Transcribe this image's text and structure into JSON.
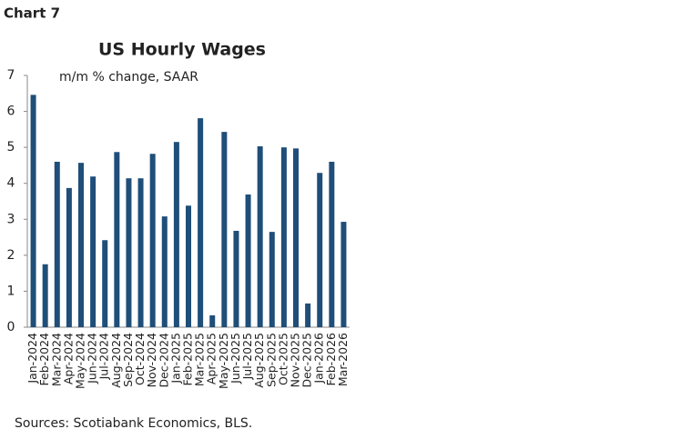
{
  "chart_data": {
    "type": "bar",
    "label": "Chart 7",
    "title": "US Hourly Wages",
    "subtitle": "m/m % change, SAAR",
    "source": "Sources: Scotiabank Economics, BLS.",
    "categories": [
      "Jan-2024",
      "Feb-2024",
      "Mar-2024",
      "Apr-2024",
      "May-2024",
      "Jun-2024",
      "Jul-2024",
      "Aug-2024",
      "Sep-2024",
      "Oct-2024",
      "Nov-2024",
      "Dec-2024",
      "Jan-2025",
      "Feb-2025",
      "Mar-2025",
      "Apr-2025",
      "May-2025",
      "Jun-2025",
      "Jul-2025",
      "Aug-2025",
      "Sep-2025",
      "Oct-2025",
      "Nov-2025",
      "Dec-2025",
      "Jan-2026",
      "Feb-2026",
      "Mar-2026"
    ],
    "values": [
      6.46,
      1.75,
      4.6,
      3.87,
      4.57,
      4.19,
      2.42,
      4.87,
      4.14,
      4.14,
      4.82,
      3.08,
      5.15,
      3.38,
      5.81,
      0.33,
      5.43,
      2.68,
      3.69,
      5.03,
      2.65,
      5.0,
      4.97,
      0.66,
      4.29,
      4.6,
      2.93
    ],
    "color": "#1f4e79",
    "ylim": [
      0,
      7
    ],
    "yticks": [
      0,
      1,
      2,
      3,
      4,
      5,
      6,
      7
    ],
    "grid": false
  }
}
